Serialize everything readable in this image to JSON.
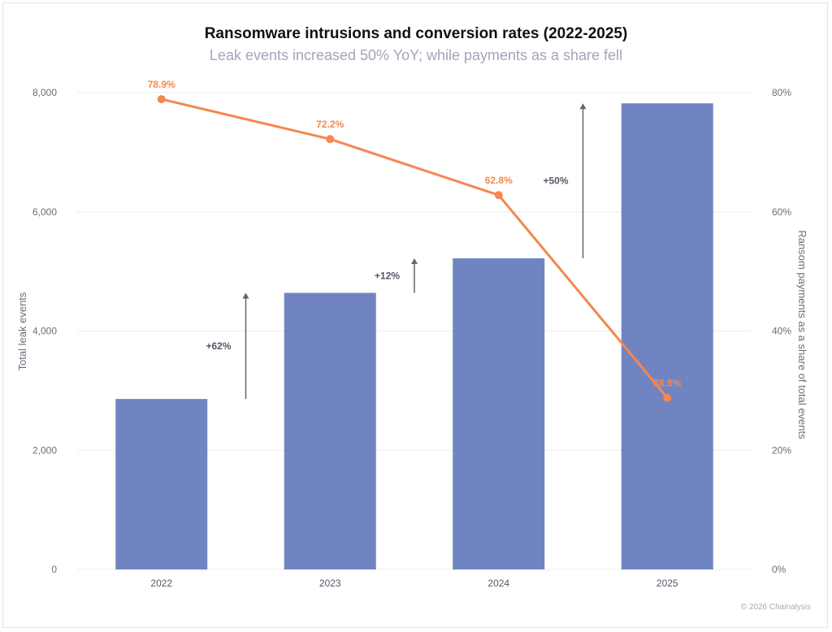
{
  "chart_data": {
    "type": "bar+line",
    "title": "Ransomware intrusions and conversion rates (2022-2025)",
    "subtitle": "Leak events increased 50% YoY; while payments as a share fell",
    "categories": [
      "2022",
      "2023",
      "2024",
      "2025"
    ],
    "bar_series": {
      "values": [
        2860,
        4640,
        5220,
        7820
      ],
      "color": "#7084c2",
      "axis": "left"
    },
    "line_series": {
      "values": [
        78.9,
        72.2,
        62.8,
        28.8
      ],
      "labels": [
        "78.9%",
        "72.2%",
        "62.8%",
        "28.8%"
      ],
      "color": "#f5874f",
      "axis": "right"
    },
    "left_axis": {
      "label": "Total leak events",
      "range": [
        0,
        8000
      ],
      "ticks": [
        0,
        2000,
        4000,
        6000,
        8000
      ],
      "tick_labels": [
        "0",
        "2,000",
        "4,000",
        "6,000",
        "8,000"
      ]
    },
    "right_axis": {
      "label": "Ransom payments as a share of total events",
      "range": [
        0,
        80
      ],
      "ticks": [
        0,
        20,
        40,
        60,
        80
      ],
      "tick_labels": [
        "0%",
        "20%",
        "40%",
        "60%",
        "80%"
      ]
    },
    "annotations": [
      {
        "text": "+62%",
        "from": "2022",
        "to": "2023"
      },
      {
        "text": "+12%",
        "from": "2023",
        "to": "2024"
      },
      {
        "text": "+50%",
        "from": "2024",
        "to": "2025"
      }
    ],
    "grid": "horizontal",
    "legend": "none"
  },
  "footer": {
    "credit": "© 2026 Chainalysis"
  }
}
